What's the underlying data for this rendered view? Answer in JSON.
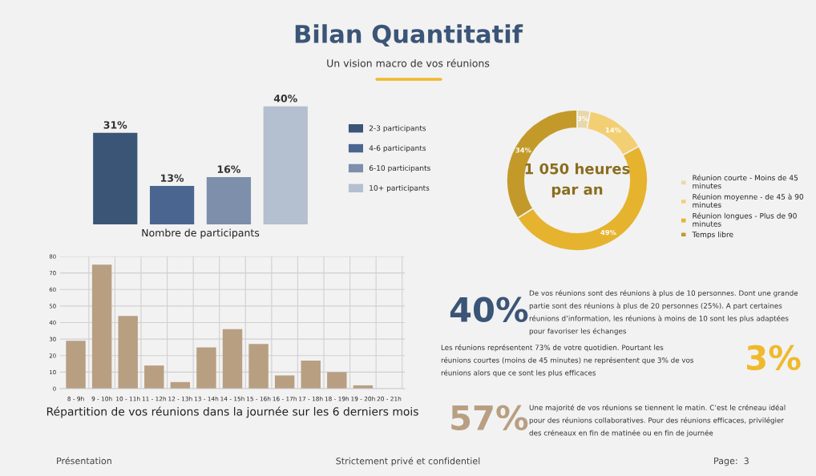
{
  "chart_data": [
    {
      "type": "other",
      "title": "Bilan Quantitatif",
      "subtitle": "Un vision macro de vos réunions",
      "annotations": [
        "Présentation",
        "Strictement privé et confidentiel",
        "Page:  3"
      ]
    },
    {
      "type": "bar",
      "xlabel": "Nombre de participants",
      "categories": [
        null
      ],
      "series": [
        {
          "name": "2-3 participants",
          "color": "#3b5577",
          "values": [
            31
          ],
          "value_labels": [
            "31%"
          ]
        },
        {
          "name": "4-6 participants",
          "color": "#4a6690",
          "values": [
            13
          ],
          "value_labels": [
            "13%"
          ]
        },
        {
          "name": "6-10 participants",
          "color": "#7d8fab",
          "values": [
            16
          ],
          "value_labels": [
            "16%"
          ]
        },
        {
          "name": "10+ participants",
          "color": "#b4bfcf",
          "values": [
            40
          ],
          "value_labels": [
            "40%"
          ]
        }
      ],
      "legend": "right",
      "tick_labels": false
    },
    {
      "type": "donut",
      "categories": [
        "Réunion courte - Moins de 45 minutes",
        "Réunion moyenne - de 45 à 90 minutes",
        "Réunion longues - Plus de 90 minutes",
        "Temps libre"
      ],
      "values": [
        3,
        14,
        49,
        34
      ],
      "value_labels": [
        "3%",
        "14%",
        "49%",
        "34%"
      ],
      "colors": [
        "#e8d7aa",
        "#f3cf74",
        "#e6b32f",
        "#c39a2a"
      ],
      "annotations": [
        "1 050 heures\npar an"
      ],
      "legend": "right"
    },
    {
      "type": "bar",
      "xlabel": "Répartition de vos réunions dans la journée sur les 6 derniers mois",
      "categories": [
        "8 - 9h",
        "9 - 10h",
        "10 - 11h",
        "11 - 12h",
        "12 - 13h",
        "13 - 14h",
        "14 - 15h",
        "15 - 16h",
        "16 - 17h",
        "17 - 18h",
        "18 - 19h",
        "19 - 20h",
        "20 - 21h"
      ],
      "values": [
        29,
        75,
        44,
        14,
        4,
        25,
        36,
        27,
        8,
        17,
        10,
        2,
        0
      ],
      "color": "#b89f82",
      "ylim": [
        0,
        80
      ],
      "yticks": [
        0,
        10,
        20,
        30,
        40,
        50,
        60,
        70,
        80
      ],
      "grid": true
    },
    {
      "type": "other",
      "annotations": [
        "40%",
        "De vos réunions sont des réunions à plus de 10 personnes. Dont une grande partie sont des réunions à plus de 20 personnes (25%). A part certaines réunions d’information, les réunions à moins de 10 sont les plus adaptées pour favoriser les échanges",
        "3%",
        "Les réunions représentent 73% de votre quotidien. Pourtant les réunions courtes (moins de 45 minutes) ne représentent que 3% de vos réunions alors que ce sont les plus efficaces",
        "57%",
        "Une majorité de vos réunions se tiennent le matin. C’est le créneau idéal pour des réunions collaboratives. Pour des réunions efficaces, privilégier des créneaux en fin de matinée ou en fin de journée"
      ],
      "colors": [
        "#3b5577",
        "#f0b92c",
        "#b89f82"
      ]
    }
  ]
}
